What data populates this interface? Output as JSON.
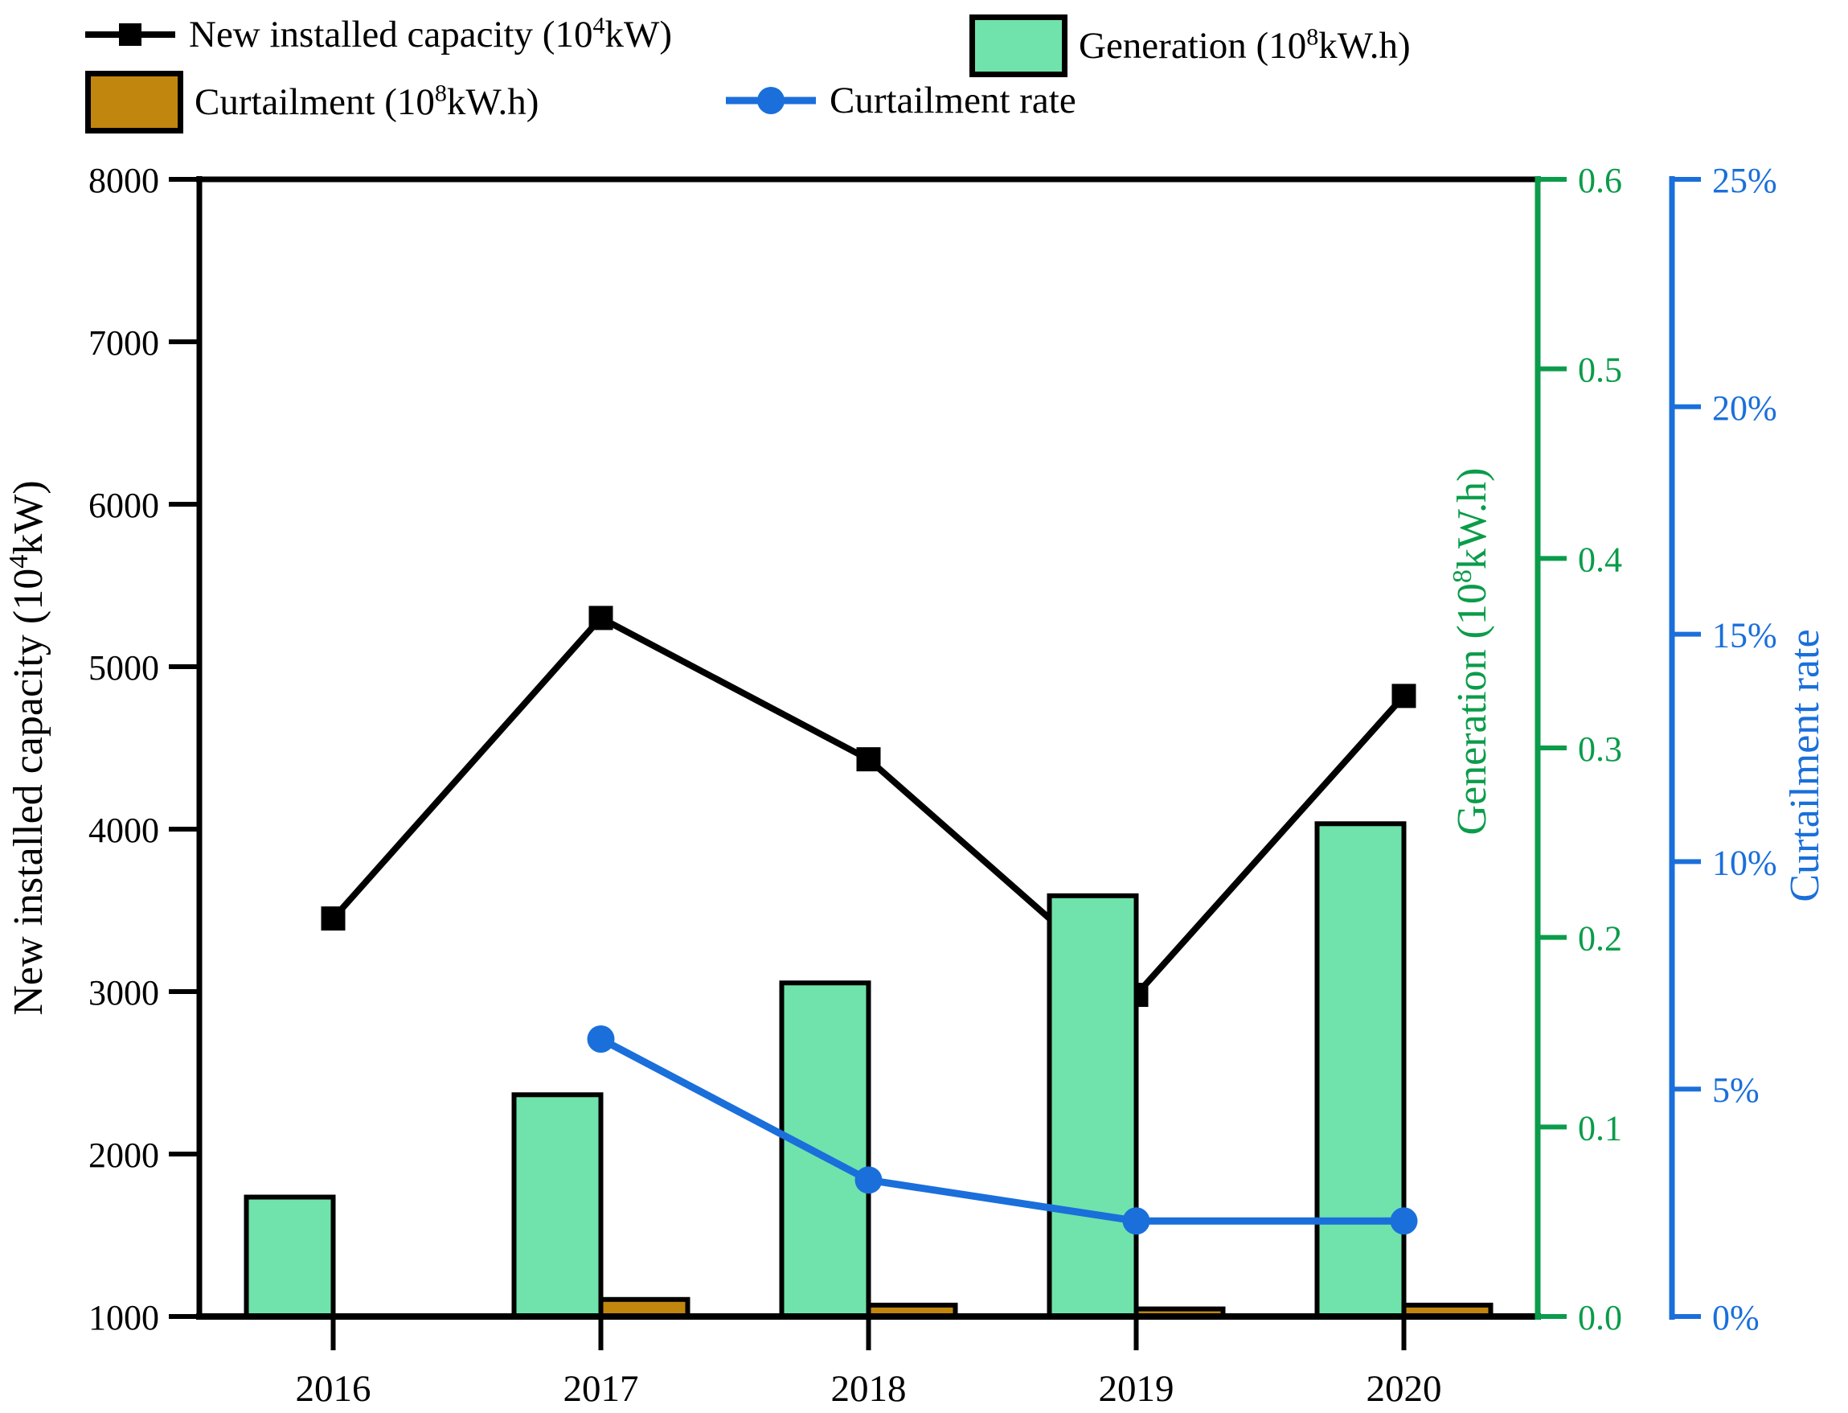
{
  "legend": {
    "capacity": {
      "pre": "New installed capacity (10",
      "sup": "4",
      "post": "kW)"
    },
    "generation": {
      "pre": "Generation (10",
      "sup": "8",
      "post": "kW.h)"
    },
    "curtailment": {
      "pre": "Curtailment (10",
      "sup": "8",
      "post": "kW.h)"
    },
    "rate": {
      "label": "Curtailment rate"
    }
  },
  "axes_titles": {
    "left": {
      "pre": "New installed capacity (10",
      "sup": "4",
      "post": "kW)"
    },
    "generation": {
      "pre": "Generation (10",
      "sup": "8",
      "post": "kW.h)"
    },
    "rate": "Curtailment rate"
  },
  "colors": {
    "black": "#000000",
    "generation_fill": "#6fe3ab",
    "curtailment_fill": "#c1860d",
    "rate_blue": "#1a6fdb",
    "generation_axis_green": "#0a9c4a",
    "background": "#ffffff"
  },
  "chart_data": {
    "type": "composite",
    "title": "",
    "categories": [
      "2016",
      "2017",
      "2018",
      "2019",
      "2020"
    ],
    "series": [
      {
        "name": "New installed capacity (10^4 kW)",
        "type": "line",
        "marker": "square",
        "axis": "left",
        "color_key": "black",
        "values": [
          3450,
          5300,
          4430,
          2980,
          4820
        ]
      },
      {
        "name": "Generation (10^8 kW.h)",
        "type": "bar",
        "axis": "generation",
        "color_key": "generation_fill",
        "values": [
          0.063,
          0.117,
          0.176,
          0.222,
          0.26
        ]
      },
      {
        "name": "Curtailment (10^8 kW.h)",
        "type": "bar",
        "axis": "generation",
        "color_key": "curtailment_fill",
        "values": [
          0,
          0.009,
          0.006,
          0.004,
          0.006
        ]
      },
      {
        "name": "Curtailment rate",
        "type": "line",
        "marker": "circle",
        "axis": "rate",
        "color_key": "rate_blue",
        "unit": "%",
        "values": [
          null,
          6.1,
          3.0,
          2.1,
          2.1
        ]
      }
    ],
    "axes": {
      "left": {
        "min": 1000,
        "max": 8000,
        "tick_labels": [
          "1000",
          "2000",
          "3000",
          "4000",
          "5000",
          "6000",
          "7000",
          "8000"
        ],
        "tick_values": [
          1000,
          2000,
          3000,
          4000,
          5000,
          6000,
          7000,
          8000
        ]
      },
      "generation": {
        "min": 0,
        "max": 0.6,
        "tick_labels": [
          "0.0",
          "0.1",
          "0.2",
          "0.3",
          "0.4",
          "0.5",
          "0.6"
        ],
        "tick_values": [
          0,
          0.1,
          0.2,
          0.3,
          0.4,
          0.5,
          0.6
        ]
      },
      "rate": {
        "min": 0,
        "max": 25,
        "tick_labels": [
          "0%",
          "5%",
          "10%",
          "15%",
          "20%",
          "25%"
        ],
        "tick_values": [
          0,
          5,
          10,
          15,
          20,
          25
        ]
      }
    },
    "grid": false,
    "legend_position": "top"
  }
}
